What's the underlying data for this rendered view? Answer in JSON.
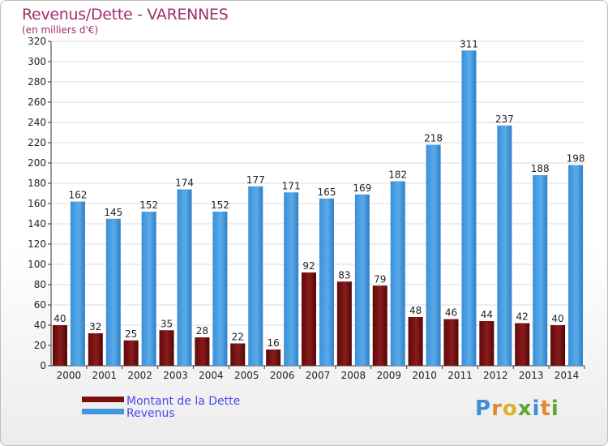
{
  "chart_data": {
    "type": "bar",
    "title": "Revenus/Dette - VARENNES",
    "subtitle": "(en milliers d'€)",
    "categories": [
      "2000",
      "2001",
      "2002",
      "2003",
      "2004",
      "2005",
      "2006",
      "2007",
      "2008",
      "2009",
      "2010",
      "2011",
      "2012",
      "2013",
      "2014"
    ],
    "series": [
      {
        "name": "Montant de la Dette",
        "color": "#7a0f0f",
        "values": [
          40,
          32,
          25,
          35,
          28,
          22,
          16,
          92,
          83,
          79,
          48,
          46,
          44,
          42,
          40
        ]
      },
      {
        "name": "Revenus",
        "color": "#3f97df",
        "values": [
          162,
          145,
          152,
          174,
          152,
          177,
          171,
          165,
          169,
          182,
          218,
          311,
          237,
          188,
          198
        ]
      }
    ],
    "ylim": [
      0,
      320
    ],
    "yticks": [
      0,
      20,
      40,
      60,
      80,
      100,
      120,
      140,
      160,
      180,
      200,
      220,
      240,
      260,
      280,
      300,
      320
    ],
    "grid": true,
    "legend": "bottom-left"
  },
  "logo": {
    "letters": [
      {
        "ch": "P",
        "color": "#3a8fd6"
      },
      {
        "ch": "r",
        "color": "#e08a2c"
      },
      {
        "ch": "o",
        "color": "#e0b024"
      },
      {
        "ch": "x",
        "color": "#5aa838"
      },
      {
        "ch": "i",
        "color": "#3a8fd6"
      },
      {
        "ch": "t",
        "color": "#e08a2c"
      },
      {
        "ch": "i",
        "color": "#5aa838"
      }
    ]
  }
}
